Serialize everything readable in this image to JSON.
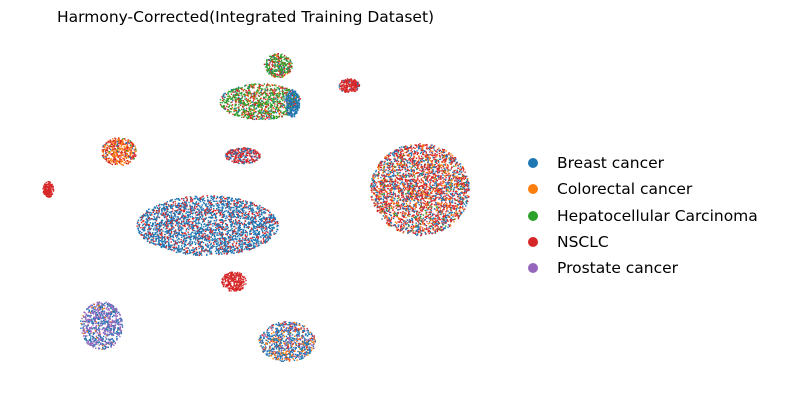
{
  "chart_data": {
    "type": "scatter",
    "title": "Harmony-Corrected(Integrated Training Dataset)",
    "xlabel": "",
    "ylabel": "",
    "axes_visible": false,
    "grid": false,
    "legend_position": "right",
    "series": [
      {
        "name": "Breast cancer",
        "color": "#1f77b4"
      },
      {
        "name": "Colorectal cancer",
        "color": "#ff7f0e"
      },
      {
        "name": "Hepatocellular Carcinoma",
        "color": "#2ca02c"
      },
      {
        "name": "NSCLC",
        "color": "#d62728"
      },
      {
        "name": "Prostate cancer",
        "color": "#9467bd"
      }
    ],
    "clusters": [
      {
        "id": "top-small",
        "x": 0.2,
        "y": 0.9,
        "rx": 0.08,
        "ry": 0.06,
        "mix": [
          0.08,
          0.05,
          0.55,
          0.3,
          0
        ]
      },
      {
        "id": "top-large",
        "x": 0.1,
        "y": 0.72,
        "rx": 0.23,
        "ry": 0.09,
        "mix": [
          0.08,
          0.07,
          0.6,
          0.25,
          0
        ]
      },
      {
        "id": "top-large-blue-edge",
        "x": 0.28,
        "y": 0.71,
        "rx": 0.04,
        "ry": 0.07,
        "mix": [
          0.9,
          0,
          0.05,
          0.05,
          0
        ]
      },
      {
        "id": "upper-right-small",
        "x": 0.6,
        "y": 0.8,
        "rx": 0.06,
        "ry": 0.035,
        "mix": [
          0.05,
          0,
          0,
          0.95,
          0
        ]
      },
      {
        "id": "left-mid",
        "x": -0.7,
        "y": 0.47,
        "rx": 0.1,
        "ry": 0.07,
        "mix": [
          0.05,
          0.45,
          0.05,
          0.45,
          0
        ]
      },
      {
        "id": "center-red",
        "x": 0.0,
        "y": 0.45,
        "rx": 0.1,
        "ry": 0.04,
        "mix": [
          0.35,
          0,
          0,
          0.65,
          0
        ]
      },
      {
        "id": "right-large",
        "x": 1.0,
        "y": 0.28,
        "rx": 0.28,
        "ry": 0.23,
        "mix": [
          0.28,
          0.17,
          0.05,
          0.5,
          0
        ]
      },
      {
        "id": "center-blue",
        "x": -0.2,
        "y": 0.1,
        "rx": 0.4,
        "ry": 0.15,
        "mix": [
          0.72,
          0,
          0,
          0.28,
          0
        ]
      },
      {
        "id": "far-left",
        "x": -1.1,
        "y": 0.28,
        "rx": 0.03,
        "ry": 0.04,
        "mix": [
          0,
          0,
          0,
          1,
          0
        ]
      },
      {
        "id": "bottom-left",
        "x": -0.8,
        "y": -0.4,
        "rx": 0.12,
        "ry": 0.12,
        "mix": [
          0.35,
          0.05,
          0,
          0,
          0.6
        ]
      },
      {
        "id": "bottom-center",
        "x": 0.25,
        "y": -0.48,
        "rx": 0.16,
        "ry": 0.1,
        "mix": [
          0.55,
          0.2,
          0,
          0.1,
          0.15
        ]
      },
      {
        "id": "center-lower-red",
        "x": -0.05,
        "y": -0.18,
        "rx": 0.07,
        "ry": 0.05,
        "mix": [
          0,
          0,
          0,
          1,
          0
        ]
      }
    ]
  }
}
